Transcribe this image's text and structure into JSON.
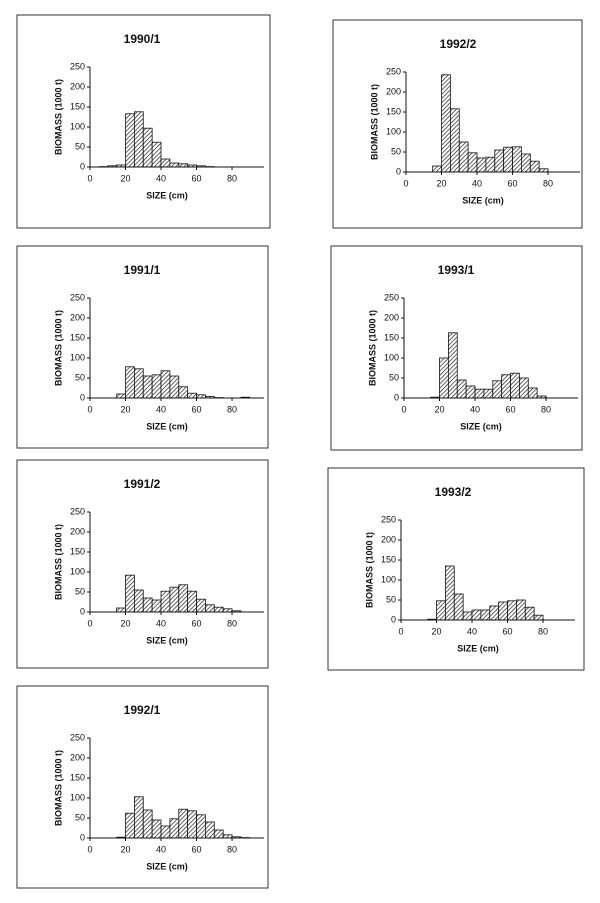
{
  "chart_data": [
    {
      "type": "histogram",
      "title": "1990/1",
      "xlabel": "SIZE (cm)",
      "ylabel": "BIOMASS (1000 t)",
      "bins": [
        0,
        5,
        10,
        15,
        20,
        25,
        30,
        35,
        40,
        45,
        50,
        55,
        60,
        65,
        70,
        75,
        80,
        85,
        90,
        95
      ],
      "values": [
        0,
        1,
        3,
        5,
        133,
        138,
        97,
        62,
        20,
        10,
        8,
        5,
        3,
        1,
        0,
        0,
        0,
        0,
        0
      ],
      "xlim": [
        0,
        98
      ],
      "xticks": [
        0,
        20,
        40,
        60,
        80
      ],
      "ylim": [
        0,
        250
      ],
      "yticks": [
        0,
        50,
        100,
        150,
        200,
        250
      ]
    },
    {
      "type": "histogram",
      "title": "1992/2",
      "xlabel": "SIZE (cm)",
      "ylabel": "BIOMASS (1000 t)",
      "bins": [
        0,
        5,
        10,
        15,
        20,
        25,
        30,
        35,
        40,
        45,
        50,
        55,
        60,
        65,
        70,
        75,
        80,
        85,
        90,
        95
      ],
      "values": [
        0,
        0,
        0,
        15,
        243,
        158,
        75,
        48,
        35,
        37,
        55,
        62,
        63,
        45,
        27,
        8,
        0,
        0,
        0
      ],
      "xlim": [
        0,
        98
      ],
      "xticks": [
        0,
        20,
        40,
        60,
        80
      ],
      "ylim": [
        0,
        250
      ],
      "yticks": [
        0,
        50,
        100,
        150,
        200,
        250
      ]
    },
    {
      "type": "histogram",
      "title": "1991/1",
      "xlabel": "SIZE (cm)",
      "ylabel": "BIOMASS (1000 t)",
      "bins": [
        0,
        5,
        10,
        15,
        20,
        25,
        30,
        35,
        40,
        45,
        50,
        55,
        60,
        65,
        70,
        75,
        80,
        85,
        90,
        95
      ],
      "values": [
        0,
        0,
        0,
        10,
        78,
        73,
        55,
        58,
        68,
        55,
        28,
        12,
        8,
        4,
        1,
        0,
        0,
        2,
        0
      ],
      "xlim": [
        0,
        98
      ],
      "xticks": [
        0,
        20,
        40,
        60,
        80
      ],
      "ylim": [
        0,
        250
      ],
      "yticks": [
        0,
        50,
        100,
        150,
        200,
        250
      ]
    },
    {
      "type": "histogram",
      "title": "1993/1",
      "xlabel": "SIZE (cm)",
      "ylabel": "BIOMASS (1000 t)",
      "bins": [
        0,
        5,
        10,
        15,
        20,
        25,
        30,
        35,
        40,
        45,
        50,
        55,
        60,
        65,
        70,
        75,
        80,
        85,
        90,
        95
      ],
      "values": [
        0,
        0,
        0,
        2,
        100,
        163,
        45,
        30,
        22,
        22,
        43,
        58,
        62,
        50,
        25,
        5,
        0,
        0,
        0
      ],
      "xlim": [
        0,
        98
      ],
      "xticks": [
        0,
        20,
        40,
        60,
        80
      ],
      "ylim": [
        0,
        250
      ],
      "yticks": [
        0,
        50,
        100,
        150,
        200,
        250
      ]
    },
    {
      "type": "histogram",
      "title": "1991/2",
      "xlabel": "SIZE (cm)",
      "ylabel": "BIOMASS (1000 t)",
      "bins": [
        0,
        5,
        10,
        15,
        20,
        25,
        30,
        35,
        40,
        45,
        50,
        55,
        60,
        65,
        70,
        75,
        80,
        85,
        90,
        95
      ],
      "values": [
        0,
        0,
        0,
        10,
        92,
        55,
        35,
        30,
        52,
        62,
        68,
        52,
        32,
        18,
        12,
        8,
        3,
        0,
        0
      ],
      "xlim": [
        0,
        98
      ],
      "xticks": [
        0,
        20,
        40,
        60,
        80
      ],
      "ylim": [
        0,
        250
      ],
      "yticks": [
        0,
        50,
        100,
        150,
        200,
        250
      ]
    },
    {
      "type": "histogram",
      "title": "1993/2",
      "xlabel": "SIZE (cm)",
      "ylabel": "BIOMASS (1000 t)",
      "bins": [
        0,
        5,
        10,
        15,
        20,
        25,
        30,
        35,
        40,
        45,
        50,
        55,
        60,
        65,
        70,
        75,
        80,
        85,
        90,
        95
      ],
      "values": [
        0,
        0,
        0,
        2,
        48,
        135,
        65,
        20,
        25,
        25,
        35,
        45,
        48,
        50,
        32,
        12,
        0,
        0,
        0
      ],
      "xlim": [
        0,
        98
      ],
      "xticks": [
        0,
        20,
        40,
        60,
        80
      ],
      "ylim": [
        0,
        250
      ],
      "yticks": [
        0,
        50,
        100,
        150,
        200,
        250
      ]
    },
    {
      "type": "histogram",
      "title": "1992/1",
      "xlabel": "SIZE (cm)",
      "ylabel": "BIOMASS (1000 t)",
      "bins": [
        0,
        5,
        10,
        15,
        20,
        25,
        30,
        35,
        40,
        45,
        50,
        55,
        60,
        65,
        70,
        75,
        80,
        85,
        90,
        95
      ],
      "values": [
        0,
        0,
        0,
        2,
        62,
        103,
        70,
        45,
        30,
        48,
        72,
        68,
        58,
        40,
        20,
        8,
        3,
        1,
        0
      ],
      "xlim": [
        0,
        98
      ],
      "xticks": [
        0,
        20,
        40,
        60,
        80
      ],
      "ylim": [
        0,
        250
      ],
      "yticks": [
        0,
        50,
        100,
        150,
        200,
        250
      ]
    }
  ]
}
